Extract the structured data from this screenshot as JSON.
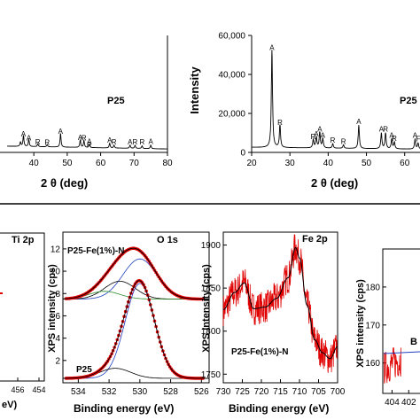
{
  "chart_data": [
    {
      "type": "line",
      "panel": "XRD P25 (cropped at left)",
      "label": "P25",
      "xlabel": "2 θ (deg)",
      "ylabel": "",
      "xlim": [
        32,
        80
      ],
      "ylim": [
        0,
        60000
      ],
      "x_ticks": [
        "40",
        "50",
        "60",
        "70",
        "80"
      ],
      "x_tick_values": [
        40,
        50,
        60,
        70,
        80
      ],
      "peaks": [
        {
          "x": 36.0,
          "y": 2200,
          "label": ""
        },
        {
          "x": 36.9,
          "y": 5600,
          "label": "A"
        },
        {
          "x": 38.5,
          "y": 3600,
          "label": "A"
        },
        {
          "x": 41.2,
          "y": 1500,
          "label": "R"
        },
        {
          "x": 44.0,
          "y": 1200,
          "label": "R"
        },
        {
          "x": 48.0,
          "y": 7000,
          "label": "A"
        },
        {
          "x": 53.9,
          "y": 3800,
          "label": "A"
        },
        {
          "x": 55.0,
          "y": 3600,
          "label": "R"
        },
        {
          "x": 56.6,
          "y": 1800,
          "label": "A"
        },
        {
          "x": 56.6,
          "y": 0,
          "label": "R"
        },
        {
          "x": 62.7,
          "y": 2400,
          "label": "A"
        },
        {
          "x": 64.0,
          "y": 1500,
          "label": "R"
        },
        {
          "x": 68.8,
          "y": 1600,
          "label": "A"
        },
        {
          "x": 70.3,
          "y": 1600,
          "label": "R"
        },
        {
          "x": 72.4,
          "y": 1400,
          "label": "R"
        },
        {
          "x": 75.0,
          "y": 1800,
          "label": "A"
        }
      ]
    },
    {
      "type": "line",
      "panel": "XRD P25-Fe(1%)-N (cropped at right)",
      "label": "P25",
      "xlabel": "2 θ (deg)",
      "ylabel": "Intensity",
      "xlim": [
        20,
        64
      ],
      "ylim": [
        0,
        60000
      ],
      "x_ticks": [
        "20",
        "30",
        "40",
        "50",
        "60"
      ],
      "x_tick_values": [
        20,
        30,
        40,
        50,
        60
      ],
      "y_ticks": [
        "0",
        "20,000",
        "40,000",
        "60,000"
      ],
      "y_tick_values": [
        0,
        20000,
        40000,
        60000
      ],
      "peaks": [
        {
          "x": 25.3,
          "y": 50000,
          "label": "A"
        },
        {
          "x": 27.4,
          "y": 11500,
          "label": "R"
        },
        {
          "x": 36.1,
          "y": 4200,
          "label": "R"
        },
        {
          "x": 36.9,
          "y": 5600,
          "label": "A"
        },
        {
          "x": 37.8,
          "y": 8000,
          "label": "A"
        },
        {
          "x": 38.6,
          "y": 4800,
          "label": "A"
        },
        {
          "x": 41.2,
          "y": 2300,
          "label": "R"
        },
        {
          "x": 44.0,
          "y": 1800,
          "label": "R"
        },
        {
          "x": 48.0,
          "y": 12000,
          "label": "A"
        },
        {
          "x": 53.9,
          "y": 8000,
          "label": "A"
        },
        {
          "x": 55.0,
          "y": 8000,
          "label": "R"
        },
        {
          "x": 56.6,
          "y": 4800,
          "label": "A"
        },
        {
          "x": 57.3,
          "y": 3400,
          "label": "R"
        },
        {
          "x": 62.7,
          "y": 5000,
          "label": "A"
        },
        {
          "x": 63.5,
          "y": 3000,
          "label": "F"
        }
      ]
    },
    {
      "type": "line",
      "panel": "XPS Ti 2p (cropped)",
      "title": "Ti 2p",
      "xlabel": "eV)",
      "x_ticks": [
        "456",
        "454"
      ],
      "x_tick_values": [
        456,
        454
      ]
    },
    {
      "type": "line",
      "panel": "XPS O 1s",
      "title": "O 1s",
      "xlabel": "Binding energy (eV)",
      "ylabel": "XPS intensity (cps)",
      "xlim": [
        535,
        525.5
      ],
      "ylim": [
        0,
        13.5
      ],
      "x_ticks": [
        "534",
        "532",
        "530",
        "528",
        "526"
      ],
      "x_tick_values": [
        534,
        532,
        530,
        528,
        526
      ],
      "y_ticks": [
        "2",
        "4",
        "6",
        "8",
        "10",
        "12"
      ],
      "y_tick_values": [
        2,
        4,
        6,
        8,
        10,
        12
      ],
      "series": [
        {
          "name": "P25-Fe(1%)-N",
          "offset": 7.5,
          "components": [
            {
              "center": 530.0,
              "height": 3.6,
              "width": 1.1
            },
            {
              "center": 531.3,
              "height": 1.6,
              "width": 1.0
            },
            {
              "center": 532.3,
              "height": 0.7,
              "width": 1.0
            }
          ]
        },
        {
          "name": "P25",
          "offset": 0.4,
          "components": [
            {
              "center": 530.0,
              "height": 8.5,
              "width": 0.95
            },
            {
              "center": 531.6,
              "height": 0.9,
              "width": 1.0
            }
          ]
        }
      ]
    },
    {
      "type": "line",
      "panel": "XPS Fe 2p",
      "title": "Fe 2p",
      "label": "P25-Fe(1%)-N",
      "xlabel": "Binding energy (eV)",
      "ylabel": "XPS intensity (cps)",
      "xlim": [
        730,
        700
      ],
      "ylim": [
        1740,
        1915
      ],
      "x_ticks": [
        "730",
        "725",
        "720",
        "715",
        "710",
        "705",
        "700"
      ],
      "x_tick_values": [
        730,
        725,
        720,
        715,
        710,
        705,
        700
      ],
      "y_ticks": [
        "1750",
        "1800",
        "1850",
        "1900"
      ],
      "y_tick_values": [
        1750,
        1800,
        1850,
        1900
      ],
      "x": [
        730,
        727,
        724.5,
        722,
        719,
        716,
        713,
        711,
        710,
        708,
        706,
        704,
        702,
        700
      ],
      "y": [
        1825,
        1845,
        1856,
        1826,
        1828,
        1838,
        1862,
        1897,
        1885,
        1830,
        1790,
        1775,
        1768,
        1782
      ]
    },
    {
      "type": "line",
      "panel": "XPS N 1s (cropped)",
      "ylabel": "XPS intensity (cps)",
      "xlim": [
        405,
        398
      ],
      "ylim": [
        152,
        190
      ],
      "x_ticks": [
        "404",
        "402"
      ],
      "x_tick_values": [
        404,
        402
      ],
      "y_ticks": [
        "160",
        "170",
        "180"
      ],
      "y_tick_values": [
        160,
        170,
        180
      ],
      "series_label": "B"
    }
  ],
  "colors": {
    "ink": "#000000",
    "data_red": "#e00000",
    "fit_black": "#000000",
    "fit_blue": "#1f3fbf",
    "fit_green": "#2f8f2f",
    "fit_purple": "#7a3fa0"
  }
}
